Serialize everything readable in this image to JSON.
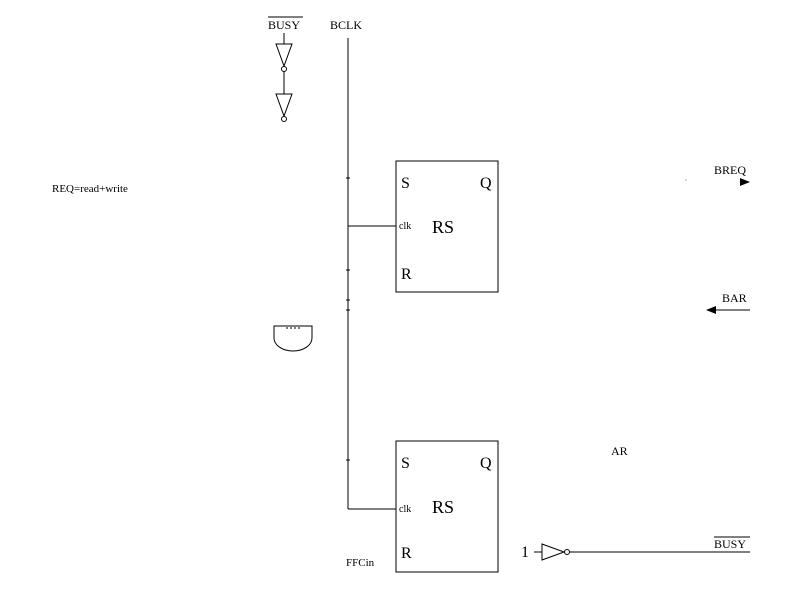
{
  "signals": {
    "busy_top": "BUSY",
    "bclk": "BCLK",
    "req": "REQ=read+write",
    "breq": "BREQ",
    "bar": "BAR",
    "ar": "AR",
    "ffcin": "FFCin",
    "const_one": "1",
    "busy_bottom": "BUSY"
  },
  "flipflop_top": {
    "s": "S",
    "q": "Q",
    "clk": "clk",
    "r": "R",
    "type": "RS"
  },
  "flipflop_bottom": {
    "s": "S",
    "q": "Q",
    "clk": "clk",
    "r": "R",
    "type": "RS"
  }
}
